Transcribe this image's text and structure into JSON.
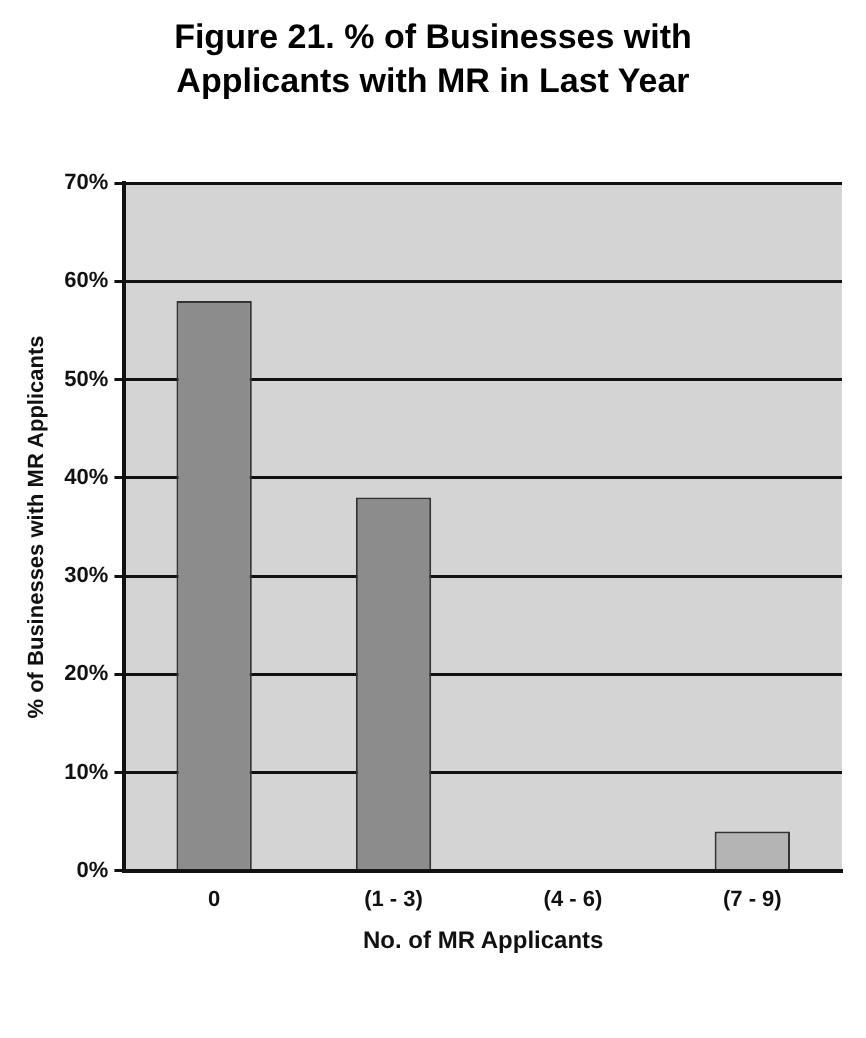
{
  "chart_data": {
    "type": "bar",
    "title": "Figure 21.  % of Businesses with Applicants with MR in Last Year",
    "xlabel": "No. of MR Applicants",
    "ylabel": "% of Businesses with MR Applicants",
    "categories": [
      "0",
      "(1 - 3)",
      "(4 - 6)",
      "(7 - 9)"
    ],
    "values": [
      58,
      38,
      0,
      4
    ],
    "colors": [
      "#8c8c8c",
      "#8c8c8c",
      "#8c8c8c",
      "#b4b4b4"
    ],
    "ylim": [
      0,
      70
    ],
    "yticks": [
      {
        "value": 0,
        "label": "0%"
      },
      {
        "value": 10,
        "label": "10%"
      },
      {
        "value": 20,
        "label": "20%"
      },
      {
        "value": 30,
        "label": "30%"
      },
      {
        "value": 40,
        "label": "40%"
      },
      {
        "value": 50,
        "label": "50%"
      },
      {
        "value": 60,
        "label": "60%"
      },
      {
        "value": 70,
        "label": "70%"
      }
    ],
    "grid": "y",
    "legend": false
  }
}
